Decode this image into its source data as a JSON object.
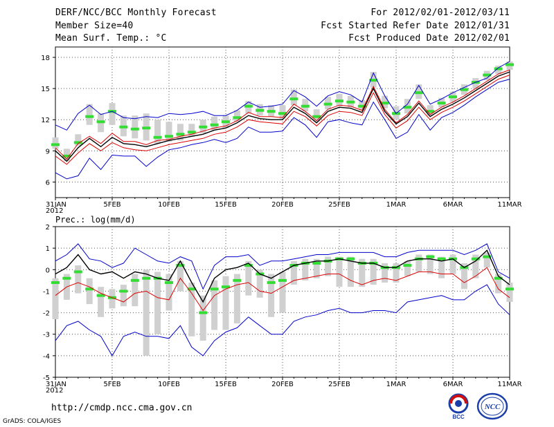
{
  "header": {
    "title": "DERF/NCC/BCC Monthly Forecast",
    "member_size": "Member Size=40",
    "variable": "Mean Surf. Temp.: °C",
    "period": "For 2012/02/01-2012/03/11",
    "refer_date": "Fcst Started Refer Date 2012/01/31",
    "produced_date": "Fcst Produced Date 2012/02/01"
  },
  "footer": {
    "url": "http://cmdp.ncc.cma.gov.cn",
    "credit": "GrADS: COLA/IGES",
    "logo_left": "BCC",
    "logo_right": "NCC"
  },
  "colors": {
    "grid": "#000000",
    "box": "#d0d0d0",
    "median": "#33dd33",
    "mean": "#000000",
    "inner": "#dd0000",
    "outer": "#0000cc"
  },
  "chart_data": [
    {
      "type": "line",
      "title": "Mean Surf. Temp.: °C",
      "x_start": "31JAN 2012",
      "x_tick_labels": [
        "31JAN\n2012",
        "5FEB",
        "10FEB",
        "15FEB",
        "20FEB",
        "25FEB",
        "1MAR",
        "6MAR",
        "11MAR"
      ],
      "x_tick_days": [
        0,
        5,
        10,
        15,
        20,
        25,
        30,
        35,
        40
      ],
      "ylim": [
        4.5,
        19
      ],
      "yticks": [
        6,
        9,
        12,
        15,
        18
      ],
      "series": [
        {
          "name": "ensemble-max",
          "values": [
            11.5,
            11,
            12.6,
            13.4,
            12.5,
            12.8,
            12.2,
            12.1,
            12.3,
            12.2,
            12.6,
            12.5,
            12.6,
            12.8,
            12.4,
            12.4,
            12.9,
            13.7,
            13.2,
            13.3,
            13.5,
            14.8,
            14.2,
            13.3,
            14.3,
            14.7,
            14.4,
            13.7,
            16.5,
            14.3,
            12.6,
            13.5,
            15.3,
            13.5,
            14.0,
            14.6,
            15.1,
            15.6,
            16.0,
            17.0,
            17.6
          ]
        },
        {
          "name": "upper",
          "values": [
            9.3,
            8.2,
            9.7,
            10.4,
            9.7,
            10.7,
            9.9,
            9.9,
            9.6,
            10.0,
            10.1,
            10.4,
            10.6,
            10.9,
            11.2,
            11.4,
            11.9,
            12.7,
            12.3,
            12.3,
            12.2,
            13.5,
            12.8,
            11.9,
            13.0,
            13.4,
            13.3,
            12.9,
            15.2,
            13.0,
            11.7,
            12.5,
            13.8,
            12.5,
            13.2,
            13.7,
            14.3,
            15.0,
            15.7,
            16.4,
            16.8
          ]
        },
        {
          "name": "mean",
          "values": [
            9.0,
            8.0,
            9.3,
            10.2,
            9.4,
            10.3,
            9.7,
            9.6,
            9.4,
            9.7,
            10.0,
            10.2,
            10.4,
            10.6,
            11.0,
            11.2,
            11.7,
            12.4,
            12.1,
            12.0,
            12.0,
            13.2,
            12.6,
            11.7,
            12.8,
            13.2,
            13.1,
            12.7,
            15.0,
            12.8,
            11.6,
            12.3,
            13.6,
            12.3,
            13.0,
            13.5,
            14.1,
            14.8,
            15.5,
            16.2,
            16.6
          ]
        },
        {
          "name": "lower",
          "values": [
            8.5,
            7.7,
            8.8,
            9.7,
            9.0,
            9.8,
            9.3,
            9.1,
            9.0,
            9.3,
            9.6,
            9.8,
            10.0,
            10.2,
            10.6,
            10.8,
            11.3,
            12.0,
            11.8,
            11.7,
            11.6,
            12.8,
            12.3,
            11.4,
            12.4,
            12.8,
            12.7,
            12.4,
            14.6,
            12.5,
            11.2,
            11.9,
            13.2,
            12.0,
            12.7,
            13.2,
            13.8,
            14.5,
            15.2,
            15.9,
            16.3
          ]
        },
        {
          "name": "ensemble-min",
          "values": [
            6.9,
            6.3,
            6.6,
            8.3,
            7.2,
            8.6,
            8.5,
            8.5,
            7.5,
            8.4,
            9.1,
            9.3,
            9.6,
            9.8,
            10.1,
            9.8,
            10.2,
            11.3,
            10.8,
            10.8,
            10.9,
            12.2,
            11.5,
            10.3,
            11.8,
            12.0,
            11.7,
            11.5,
            13.7,
            12.0,
            10.2,
            10.8,
            12.5,
            11.0,
            12.2,
            12.7,
            13.4,
            14.2,
            14.9,
            15.6,
            15.9
          ]
        },
        {
          "name": "median",
          "values": [
            9.6,
            8.5,
            9.8,
            12.3,
            11.8,
            12.8,
            11.3,
            11.1,
            11.2,
            10.3,
            10.4,
            10.6,
            10.8,
            11.3,
            11.5,
            11.8,
            12.2,
            13.3,
            12.9,
            12.8,
            12.6,
            14.0,
            13.3,
            12.3,
            13.5,
            13.8,
            13.7,
            13.3,
            15.8,
            13.6,
            12.6,
            13.2,
            14.6,
            12.8,
            13.6,
            14.2,
            14.9,
            15.6,
            16.3,
            16.9,
            17.3
          ]
        },
        {
          "name": "box-top",
          "values": [
            10.3,
            9.2,
            10.6,
            13.5,
            12.6,
            13.6,
            12.4,
            12.4,
            12.6,
            12.0,
            11.8,
            11.6,
            11.6,
            12.0,
            12.3,
            12.4,
            12.9,
            13.8,
            13.5,
            13.4,
            13.4,
            14.9,
            14.0,
            13.0,
            14.2,
            14.5,
            14.3,
            13.9,
            16.6,
            14.3,
            13.3,
            14.0,
            15.4,
            13.4,
            14.1,
            14.7,
            15.4,
            16.0,
            16.7,
            17.2,
            17.6
          ]
        },
        {
          "name": "box-bottom",
          "values": [
            9.2,
            8.0,
            9.5,
            11.5,
            10.8,
            11.5,
            10.4,
            10.2,
            10.0,
            9.7,
            9.9,
            10.0,
            10.4,
            10.7,
            11.0,
            11.2,
            11.8,
            12.6,
            12.4,
            12.3,
            12.1,
            13.4,
            12.8,
            11.8,
            13.0,
            13.3,
            13.2,
            12.9,
            15.1,
            13.1,
            12.0,
            12.6,
            14.0,
            12.4,
            13.2,
            13.7,
            14.4,
            15.0,
            15.8,
            16.4,
            16.8
          ]
        }
      ]
    },
    {
      "type": "line",
      "title": "Prec.: log(mm/d)",
      "x_start": "31JAN 2012",
      "x_tick_labels": [
        "31JAN\n2012",
        "5FEB",
        "10FEB",
        "15FEB",
        "20FEB",
        "25FEB",
        "1MAR",
        "6MAR",
        "11MAR"
      ],
      "x_tick_days": [
        0,
        5,
        10,
        15,
        20,
        25,
        30,
        35,
        40
      ],
      "ylim": [
        -5,
        2
      ],
      "yticks": [
        -5,
        -4,
        -3,
        -2,
        -1,
        0,
        1,
        2
      ],
      "series": [
        {
          "name": "ensemble-max",
          "values": [
            0.4,
            0.7,
            1.2,
            0.5,
            0.4,
            0.1,
            0.3,
            1.0,
            0.7,
            0.4,
            0.3,
            0.6,
            0.4,
            -0.9,
            0.2,
            0.6,
            0.6,
            0.7,
            0.2,
            0.4,
            0.4,
            0.5,
            0.6,
            0.7,
            0.7,
            0.8,
            0.8,
            0.8,
            0.8,
            0.6,
            0.6,
            0.8,
            0.9,
            0.9,
            0.9,
            0.9,
            0.7,
            0.9,
            1.2,
            -0.1,
            -0.4
          ]
        },
        {
          "name": "mean",
          "values": [
            -0.2,
            0.1,
            0.7,
            0.0,
            -0.2,
            -0.1,
            -0.4,
            -0.1,
            -0.2,
            -0.4,
            -0.5,
            0.4,
            -0.6,
            -1.5,
            -0.4,
            0.0,
            0.1,
            0.3,
            -0.2,
            -0.4,
            -0.1,
            0.2,
            0.3,
            0.4,
            0.4,
            0.5,
            0.4,
            0.3,
            0.3,
            0.1,
            0.1,
            0.4,
            0.5,
            0.5,
            0.4,
            0.5,
            0.1,
            0.4,
            0.9,
            -0.3,
            -0.7
          ]
        },
        {
          "name": "lower",
          "values": [
            -1.2,
            -0.8,
            -0.6,
            -0.8,
            -1.1,
            -1.3,
            -1.5,
            -1.1,
            -1.0,
            -1.3,
            -1.4,
            -0.4,
            -1.1,
            -1.9,
            -1.2,
            -0.9,
            -0.7,
            -0.6,
            -1.0,
            -1.1,
            -0.8,
            -0.5,
            -0.4,
            -0.3,
            -0.2,
            -0.2,
            -0.5,
            -0.7,
            -0.5,
            -0.4,
            -0.5,
            -0.3,
            -0.1,
            -0.1,
            -0.2,
            -0.2,
            -0.6,
            -0.3,
            0.1,
            -0.9,
            -1.3
          ]
        },
        {
          "name": "ensemble-min",
          "values": [
            -3.3,
            -2.6,
            -2.4,
            -2.8,
            -3.1,
            -4.0,
            -3.1,
            -2.9,
            -3.1,
            -3.1,
            -3.2,
            -2.6,
            -3.6,
            -4.0,
            -3.3,
            -2.9,
            -2.7,
            -2.2,
            -2.6,
            -3.0,
            -3.0,
            -2.4,
            -2.2,
            -2.1,
            -1.9,
            -1.8,
            -2.0,
            -2.0,
            -1.9,
            -1.9,
            -2.0,
            -1.5,
            -1.4,
            -1.3,
            -1.2,
            -1.4,
            -1.4,
            -1.0,
            -0.7,
            -1.6,
            -2.1
          ]
        },
        {
          "name": "median",
          "values": [
            -0.6,
            -0.4,
            -0.1,
            -0.9,
            -1.2,
            -1.3,
            -1.0,
            -0.5,
            -0.4,
            -0.4,
            -0.6,
            0.2,
            -0.9,
            -2.0,
            -0.9,
            -0.8,
            -0.5,
            0.2,
            -0.2,
            -0.6,
            -0.5,
            0.2,
            0.3,
            0.3,
            0.4,
            0.5,
            0.5,
            0.3,
            0.3,
            0.1,
            0.1,
            0.2,
            0.5,
            0.6,
            0.5,
            0.5,
            0.1,
            0.5,
            0.6,
            -0.4,
            -0.9
          ]
        },
        {
          "name": "box-top",
          "values": [
            -0.4,
            -0.2,
            0.2,
            -0.4,
            -0.8,
            -0.9,
            -0.7,
            -0.2,
            0.0,
            -0.1,
            -0.2,
            0.4,
            -0.6,
            -1.2,
            -0.5,
            -0.3,
            -0.2,
            0.4,
            0.0,
            -0.2,
            -0.1,
            0.4,
            0.5,
            0.5,
            0.6,
            0.6,
            0.6,
            0.5,
            0.5,
            0.3,
            0.3,
            0.4,
            0.7,
            0.7,
            0.6,
            0.7,
            0.3,
            0.7,
            0.8,
            -0.2,
            -0.6
          ]
        },
        {
          "name": "box-bottom",
          "values": [
            -2.3,
            -1.4,
            -1.1,
            -1.6,
            -2.2,
            -1.8,
            -1.7,
            -1.7,
            -4.0,
            -3.0,
            -1.9,
            -1.0,
            -3.1,
            -3.3,
            -2.8,
            -2.8,
            -2.5,
            -1.2,
            -1.3,
            -2.2,
            -2.0,
            -0.7,
            -0.5,
            -0.4,
            -0.3,
            -0.8,
            -0.8,
            -0.8,
            -0.7,
            -0.6,
            -0.6,
            -0.3,
            -0.1,
            -0.2,
            -0.4,
            -0.2,
            -0.9,
            -0.4,
            0.1,
            -1.1,
            -1.5
          ]
        }
      ]
    }
  ]
}
